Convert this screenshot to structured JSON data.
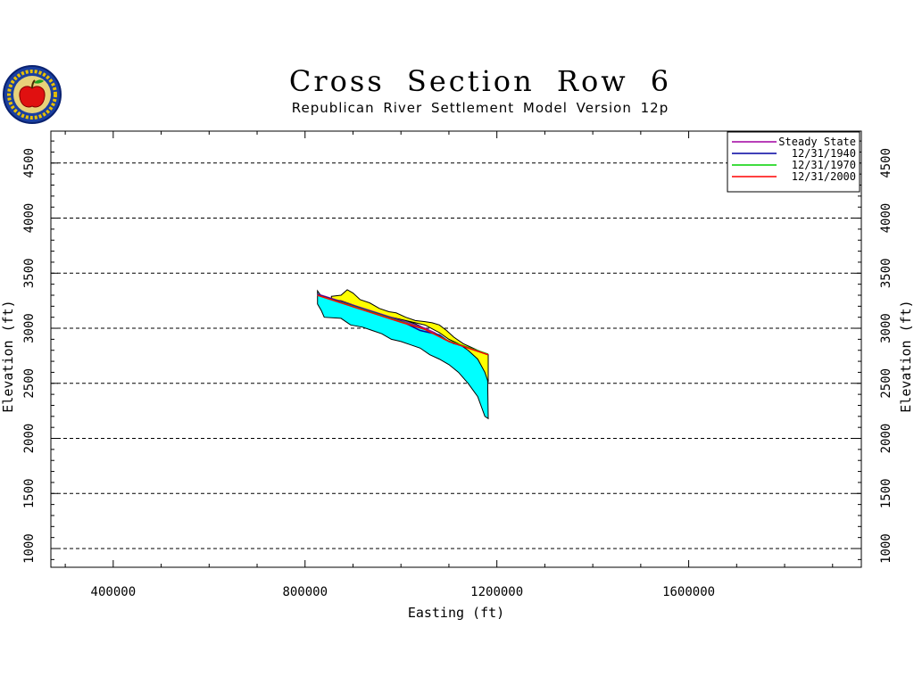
{
  "chart_data": {
    "type": "area",
    "title": "Cross Section Row 6",
    "subtitle": "Republican River Settlement Model Version 12p",
    "xlabel": "Easting (ft)",
    "ylabel": "Elevation (ft)",
    "xlim": [
      270000,
      1960000
    ],
    "ylim": [
      830000,
      4790
    ],
    "x_ticks": [
      400000,
      800000,
      1200000,
      1600000
    ],
    "y_ticks": [
      1000,
      1500,
      2000,
      2500,
      3000,
      3500,
      4000,
      4500
    ],
    "grid": "horizontal dashed",
    "legend_position": "top-right",
    "layers": [
      {
        "color": "#00ffff",
        "top": [
          [
            826000,
            3340
          ],
          [
            834000,
            3290
          ],
          [
            858000,
            3270
          ],
          [
            870000,
            3260
          ],
          [
            890000,
            3230
          ],
          [
            930000,
            3160
          ],
          [
            960000,
            3130
          ],
          [
            990000,
            3100
          ],
          [
            1010000,
            3070
          ],
          [
            1030000,
            3040
          ],
          [
            1050000,
            3000
          ],
          [
            1070000,
            2960
          ],
          [
            1090000,
            2900
          ],
          [
            1110000,
            2860
          ],
          [
            1130000,
            2840
          ],
          [
            1150000,
            2800
          ],
          [
            1160000,
            2780
          ],
          [
            1180000,
            2760
          ]
        ],
        "bottom": [
          [
            826000,
            3220
          ],
          [
            834000,
            3160
          ],
          [
            840000,
            3100
          ],
          [
            875000,
            3090
          ],
          [
            895000,
            3030
          ],
          [
            920000,
            3010
          ],
          [
            940000,
            2980
          ],
          [
            960000,
            2950
          ],
          [
            980000,
            2900
          ],
          [
            1000000,
            2880
          ],
          [
            1020000,
            2850
          ],
          [
            1040000,
            2820
          ],
          [
            1060000,
            2760
          ],
          [
            1080000,
            2720
          ],
          [
            1100000,
            2670
          ],
          [
            1120000,
            2600
          ],
          [
            1140000,
            2500
          ],
          [
            1160000,
            2380
          ],
          [
            1175000,
            2200
          ],
          [
            1182000,
            2180
          ]
        ]
      },
      {
        "color": "#ffff00",
        "top": [
          [
            855000,
            3290
          ],
          [
            875000,
            3300
          ],
          [
            888000,
            3350
          ],
          [
            900000,
            3320
          ],
          [
            915000,
            3260
          ],
          [
            935000,
            3230
          ],
          [
            955000,
            3180
          ],
          [
            975000,
            3150
          ],
          [
            990000,
            3140
          ],
          [
            1010000,
            3100
          ],
          [
            1030000,
            3070
          ],
          [
            1050000,
            3060
          ],
          [
            1065000,
            3050
          ],
          [
            1080000,
            3030
          ],
          [
            1095000,
            2980
          ],
          [
            1110000,
            2920
          ],
          [
            1130000,
            2860
          ],
          [
            1160000,
            2800
          ],
          [
            1182000,
            2760
          ]
        ],
        "bottom": [
          [
            855000,
            3260
          ],
          [
            875000,
            3250
          ],
          [
            895000,
            3220
          ],
          [
            925000,
            3170
          ],
          [
            960000,
            3120
          ],
          [
            990000,
            3090
          ],
          [
            1020000,
            3060
          ],
          [
            1050000,
            3030
          ],
          [
            1080000,
            2960
          ],
          [
            1100000,
            2900
          ],
          [
            1120000,
            2860
          ],
          [
            1140000,
            2800
          ],
          [
            1160000,
            2720
          ],
          [
            1175000,
            2600
          ],
          [
            1182000,
            2510
          ]
        ]
      }
    ],
    "series": [
      {
        "name": "Steady State",
        "color": "#a000a0",
        "x": [
          826000,
          900000,
          1000000,
          1050000,
          1070000,
          1100000,
          1182000
        ],
        "y": [
          3310,
          3210,
          3070,
          3000,
          2960,
          2880,
          2760
        ]
      },
      {
        "name": "12/31/1940",
        "color": "#0000a0",
        "x": [
          826000,
          900000,
          1000000,
          1040000,
          1060000,
          1080000,
          1100000,
          1182000
        ],
        "y": [
          3305,
          3205,
          3065,
          2980,
          2960,
          2940,
          2880,
          2760
        ]
      },
      {
        "name": "12/31/1970",
        "color": "#00d000",
        "x": [
          826000,
          900000,
          1000000,
          1050000,
          1100000,
          1182000
        ],
        "y": [
          3300,
          3200,
          3060,
          2990,
          2885,
          2765
        ]
      },
      {
        "name": "12/31/2000",
        "color": "#ff0000",
        "x": [
          826000,
          900000,
          1000000,
          1050000,
          1100000,
          1182000
        ],
        "y": [
          3300,
          3195,
          3055,
          2990,
          2880,
          2760
        ]
      }
    ]
  }
}
